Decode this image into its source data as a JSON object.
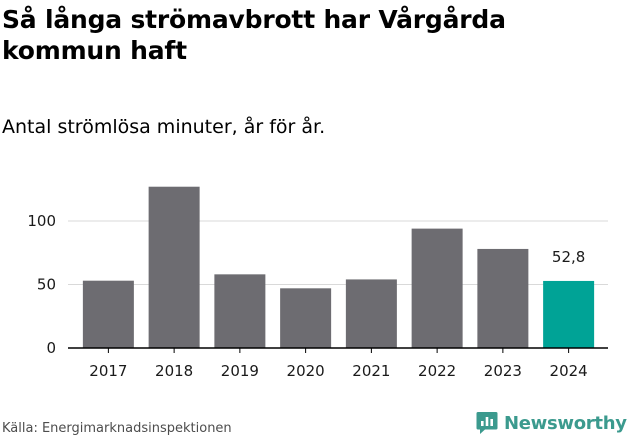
{
  "chart_data": {
    "type": "bar",
    "title": "Så långa strömavbrott har Vårgårda kommun haft",
    "subtitle": "Antal strömlösa minuter, år för år.",
    "categories": [
      "2017",
      "2018",
      "2019",
      "2020",
      "2021",
      "2022",
      "2023",
      "2024"
    ],
    "values": [
      53,
      127,
      58,
      47,
      54,
      94,
      78,
      52.8
    ],
    "ylim": [
      0,
      120
    ],
    "yticks": [
      0,
      50,
      100
    ],
    "grid": true,
    "highlight_index": 7,
    "highlight_label": "52,8",
    "xlabel": "",
    "ylabel": ""
  },
  "colors": {
    "bar": "#6d6c71",
    "highlight": "#00a396",
    "grid": "#d9d9d9",
    "axis": "#000000",
    "brand": "#3b9a8e"
  },
  "footer": {
    "source": "Källa: Energimarknadsinspektionen",
    "brand": "Newsworthy",
    "brand_icon": "newsworthy-logo-icon"
  }
}
